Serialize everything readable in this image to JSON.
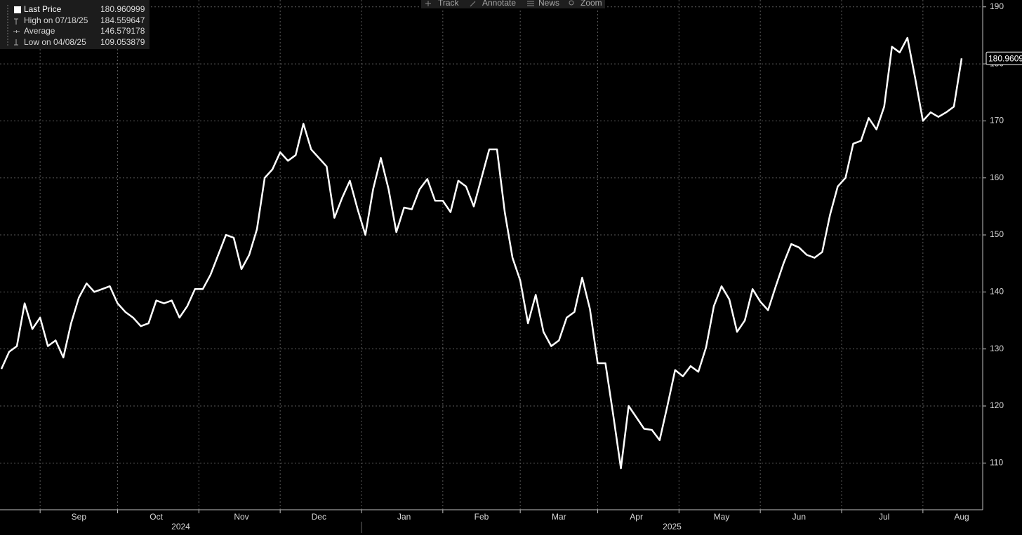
{
  "chart_data": {
    "type": "line",
    "toolbar": [
      "Track",
      "Annotate",
      "News",
      "Zoom"
    ],
    "series": [
      {
        "name": "Last Price",
        "color": "#ffffff",
        "values": [
          126.5,
          129.5,
          130.5,
          138,
          133.5,
          135.5,
          130.5,
          131.5,
          128.5,
          134.5,
          139,
          141.5,
          140,
          140.5,
          141,
          138,
          136.5,
          135.5,
          134,
          134.5,
          138.5,
          138,
          138.5,
          135.5,
          137.5,
          140.5,
          140.5,
          143,
          146.5,
          150,
          149.5,
          144,
          146.5,
          151,
          160,
          161.5,
          164.5,
          163,
          164,
          169.5,
          165,
          163.5,
          162,
          153,
          156.5,
          159.5,
          154.5,
          150,
          158,
          163.5,
          158,
          150.5,
          154.8,
          154.5,
          158,
          159.8,
          156,
          156,
          154,
          159.5,
          158.5,
          155,
          160,
          165,
          165,
          154,
          146,
          142,
          134.5,
          139.5,
          133,
          130.5,
          131.5,
          135.5,
          136.5,
          142.5,
          137,
          127.5,
          127.5,
          118.5,
          109.053879,
          120,
          118,
          116,
          115.8,
          114,
          120,
          126.3,
          125.2,
          127,
          126,
          130.3,
          137.5,
          141,
          138.7,
          133,
          135,
          140.5,
          138.3,
          136.8,
          141,
          145,
          148.4,
          147.8,
          146.5,
          146,
          147,
          153.5,
          158.5,
          160,
          166,
          166.5,
          170.5,
          168.5,
          172.5,
          183,
          182,
          184.559647,
          177.5,
          170,
          171.5,
          170.7,
          171.5,
          172.5,
          180.960999
        ]
      }
    ],
    "stats": [
      {
        "label": "High on 07/18/25",
        "value": 184.559647
      },
      {
        "label": "Average",
        "value": 146.579178
      },
      {
        "label": "Low on 04/08/25",
        "value": 109.053879
      }
    ],
    "categories": [
      null,
      null,
      null,
      null,
      null,
      null,
      null,
      null,
      null,
      null,
      "Sep",
      null,
      null,
      null,
      null,
      null,
      null,
      null,
      null,
      null,
      "Oct",
      null,
      null,
      null,
      null,
      null,
      null,
      null,
      null,
      null,
      null,
      "Nov",
      null,
      null,
      null,
      null,
      null,
      null,
      null,
      null,
      null,
      "Dec",
      null,
      null,
      null,
      null,
      null,
      null,
      null,
      null,
      null,
      null,
      "Jan",
      null,
      null,
      null,
      null,
      null,
      null,
      null,
      null,
      null,
      "Feb",
      null,
      null,
      null,
      null,
      null,
      null,
      null,
      null,
      null,
      "Mar",
      null,
      null,
      null,
      null,
      null,
      null,
      null,
      null,
      null,
      "Apr",
      null,
      null,
      null,
      null,
      null,
      null,
      null,
      null,
      null,
      null,
      "May",
      null,
      null,
      null,
      null,
      null,
      null,
      null,
      null,
      null,
      "Jun",
      null,
      null,
      null,
      null,
      null,
      null,
      null,
      null,
      null,
      null,
      "Jul",
      null,
      null,
      null,
      null,
      null,
      null,
      null,
      null,
      null,
      "Aug"
    ],
    "year_labels": [
      "2024",
      "2025"
    ],
    "ylim": [
      101.8,
      191.2
    ],
    "yticks": [
      110,
      120,
      130,
      140,
      150,
      160,
      170,
      180,
      190
    ],
    "grid": true
  }
}
